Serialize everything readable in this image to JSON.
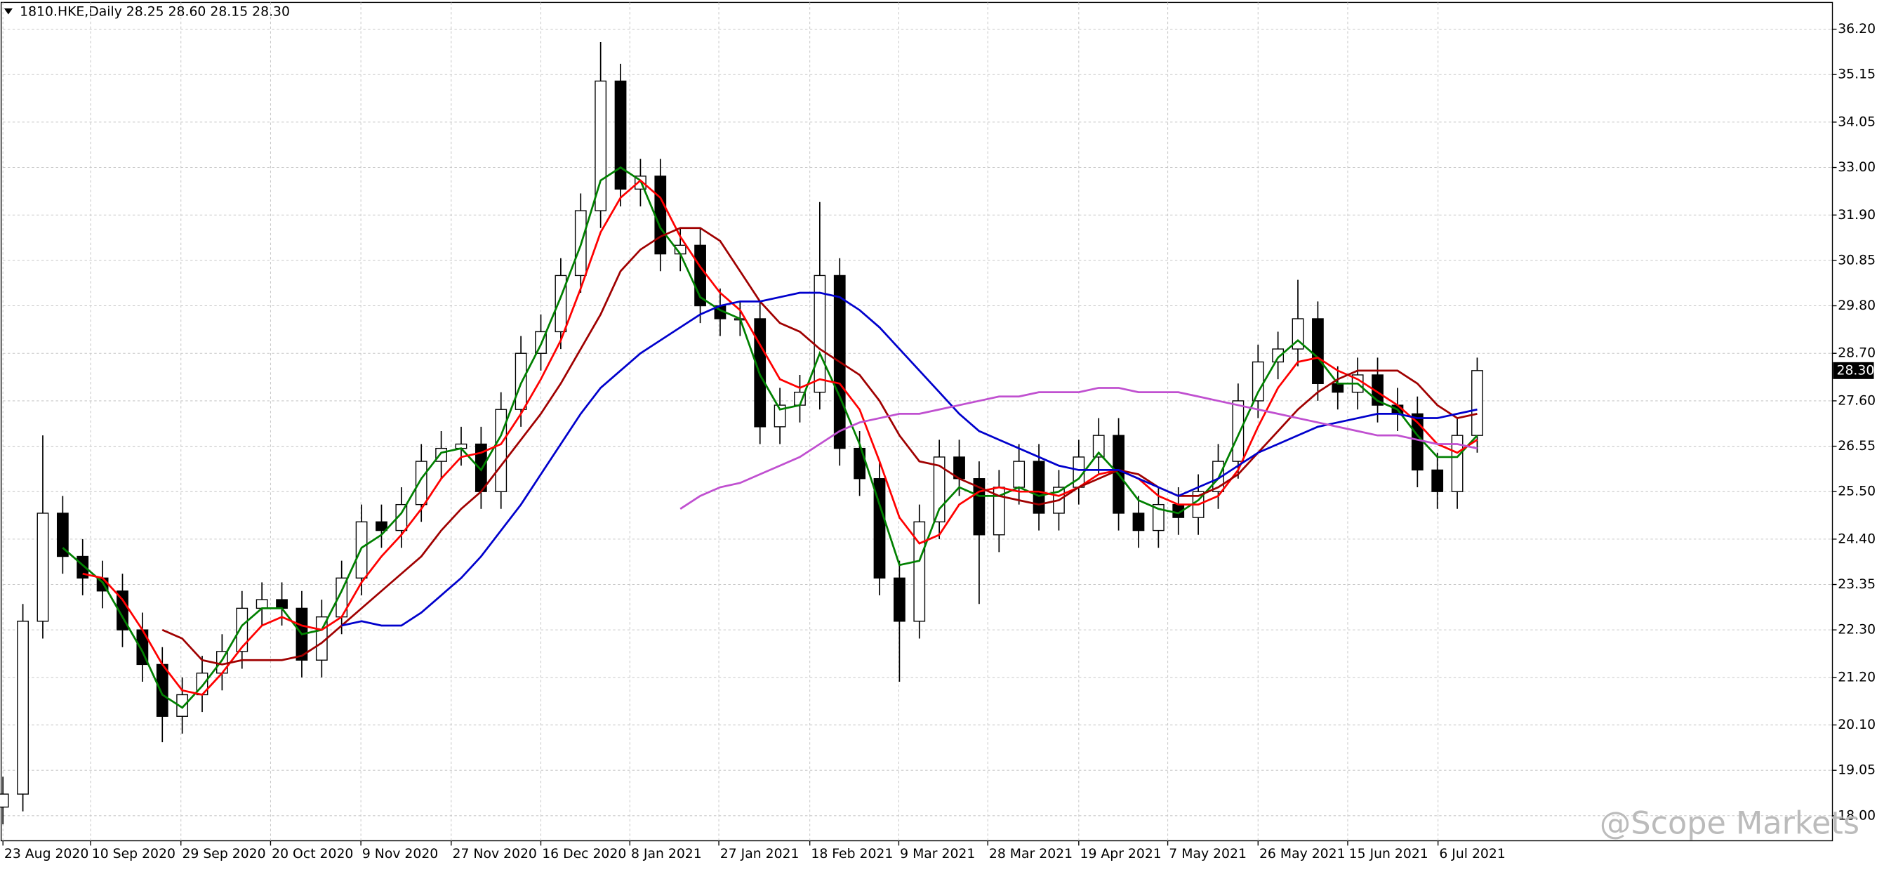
{
  "header": "1810.HKE,Daily  28.25 28.60 28.15 28.30",
  "watermark": "@Scope Markets",
  "chart_data": {
    "type": "candlestick",
    "x": [
      0,
      3,
      6,
      9,
      12,
      15,
      18,
      21,
      24,
      27,
      30,
      33,
      36,
      39,
      42,
      45,
      48,
      51,
      54,
      57,
      60,
      63,
      66,
      69,
      72,
      75,
      78,
      81,
      84,
      87,
      90,
      93,
      96,
      99,
      102,
      105,
      108,
      111,
      114,
      117,
      120,
      123,
      126,
      129,
      132,
      135,
      138,
      141,
      144,
      147,
      150,
      153,
      156,
      159,
      162,
      165,
      168,
      171,
      174,
      177,
      180,
      183,
      186,
      189,
      192,
      195,
      198,
      201,
      204,
      207,
      210,
      213,
      216,
      219,
      222
    ],
    "open": [
      18.2,
      18.5,
      22.5,
      25.0,
      24.0,
      23.5,
      23.2,
      22.3,
      21.5,
      20.3,
      20.8,
      21.3,
      21.8,
      22.8,
      23.0,
      22.8,
      21.6,
      22.6,
      23.5,
      24.8,
      24.6,
      25.2,
      26.2,
      26.5,
      26.6,
      25.5,
      27.4,
      28.7,
      29.2,
      30.5,
      32.0,
      35.0,
      32.5,
      32.8,
      31.0,
      31.2,
      29.8,
      29.5,
      29.5,
      27.0,
      27.5,
      27.8,
      30.5,
      26.5,
      25.8,
      23.5,
      22.5,
      24.8,
      26.3,
      25.8,
      24.5,
      25.6,
      26.2,
      25.0,
      25.6,
      26.3,
      26.8,
      25.0,
      24.6,
      25.2,
      24.9,
      25.5,
      26.2,
      27.6,
      28.5,
      28.8,
      29.5,
      28.0,
      27.8,
      28.2,
      27.5,
      27.3,
      26.0,
      25.5,
      26.8
    ],
    "high": [
      18.9,
      22.9,
      26.8,
      25.4,
      24.4,
      23.9,
      23.6,
      22.7,
      21.9,
      21.2,
      21.7,
      22.2,
      23.2,
      23.4,
      23.4,
      23.2,
      23.0,
      23.9,
      25.2,
      25.2,
      25.6,
      26.6,
      26.9,
      27.0,
      27.0,
      27.8,
      29.1,
      29.6,
      30.9,
      32.4,
      35.9,
      35.4,
      33.2,
      33.2,
      31.6,
      31.6,
      30.2,
      29.9,
      29.9,
      27.9,
      28.2,
      32.2,
      30.9,
      26.9,
      26.2,
      23.9,
      25.2,
      26.7,
      26.7,
      26.2,
      26.0,
      26.6,
      26.6,
      26.0,
      26.7,
      27.2,
      27.2,
      25.4,
      25.6,
      25.6,
      25.9,
      26.6,
      28.0,
      28.9,
      29.2,
      30.4,
      29.9,
      28.4,
      28.6,
      28.6,
      27.9,
      27.7,
      26.4,
      27.2,
      28.6
    ],
    "low": [
      17.8,
      18.1,
      22.1,
      23.6,
      23.1,
      22.8,
      21.9,
      21.1,
      19.7,
      19.9,
      20.4,
      20.9,
      21.4,
      22.4,
      22.4,
      21.2,
      21.2,
      22.2,
      23.1,
      24.2,
      24.2,
      24.8,
      25.8,
      26.1,
      25.1,
      25.1,
      27.0,
      28.3,
      28.8,
      30.1,
      31.6,
      32.1,
      32.1,
      30.6,
      30.6,
      29.4,
      29.1,
      29.1,
      26.6,
      26.6,
      27.1,
      27.4,
      26.1,
      25.4,
      23.1,
      21.1,
      22.1,
      24.4,
      25.4,
      22.9,
      24.1,
      25.2,
      24.6,
      24.6,
      25.2,
      25.9,
      24.6,
      24.2,
      24.2,
      24.5,
      24.5,
      25.1,
      25.8,
      27.2,
      28.1,
      28.4,
      27.6,
      27.4,
      27.4,
      27.1,
      26.9,
      25.6,
      25.1,
      25.1,
      26.4
    ],
    "close": [
      18.5,
      22.5,
      25.0,
      24.0,
      23.5,
      23.2,
      22.3,
      21.5,
      20.3,
      20.8,
      21.3,
      21.8,
      22.8,
      23.0,
      22.8,
      21.6,
      22.6,
      23.5,
      24.8,
      24.6,
      25.2,
      26.2,
      26.5,
      26.6,
      25.5,
      27.4,
      28.7,
      29.2,
      30.5,
      32.0,
      35.0,
      32.5,
      32.8,
      31.0,
      31.2,
      29.8,
      29.5,
      29.5,
      27.0,
      27.5,
      27.8,
      30.5,
      26.5,
      25.8,
      23.5,
      22.5,
      24.8,
      26.3,
      25.8,
      24.5,
      25.6,
      26.2,
      25.0,
      25.6,
      26.3,
      26.8,
      25.0,
      24.6,
      25.2,
      24.9,
      25.5,
      26.2,
      27.6,
      28.5,
      28.8,
      29.5,
      28.0,
      27.8,
      28.2,
      27.5,
      27.3,
      26.0,
      25.5,
      26.8,
      28.3
    ],
    "up_color": "#ffffff",
    "down_color": "#000000",
    "series": [
      {
        "color": "#008000",
        "values": [
          null,
          null,
          null,
          24.2,
          23.8,
          23.4,
          22.6,
          21.8,
          20.8,
          20.5,
          21.0,
          21.6,
          22.4,
          22.8,
          22.8,
          22.2,
          22.3,
          23.2,
          24.2,
          24.5,
          25.0,
          25.8,
          26.4,
          26.5,
          26.0,
          26.8,
          28.0,
          28.9,
          30.0,
          31.2,
          32.7,
          33.0,
          32.7,
          31.6,
          31.0,
          30.0,
          29.7,
          29.5,
          28.2,
          27.4,
          27.5,
          28.7,
          27.7,
          26.6,
          25.2,
          23.8,
          23.9,
          25.1,
          25.6,
          25.4,
          25.4,
          25.6,
          25.4,
          25.5,
          25.8,
          26.4,
          25.9,
          25.3,
          25.1,
          25.0,
          25.3,
          25.8,
          26.8,
          27.8,
          28.6,
          29.0,
          28.6,
          28.0,
          28.0,
          27.6,
          27.4,
          26.8,
          26.3,
          26.3,
          26.8
        ]
      },
      {
        "color": "#ff0000",
        "values": [
          null,
          null,
          null,
          null,
          23.6,
          23.5,
          23.0,
          22.3,
          21.5,
          20.9,
          20.8,
          21.3,
          21.9,
          22.4,
          22.6,
          22.4,
          22.3,
          22.6,
          23.4,
          24.0,
          24.5,
          25.1,
          25.8,
          26.3,
          26.4,
          26.6,
          27.3,
          28.1,
          29.0,
          30.2,
          31.5,
          32.3,
          32.7,
          32.3,
          31.4,
          30.7,
          30.1,
          29.7,
          28.9,
          28.1,
          27.9,
          28.1,
          28.0,
          27.4,
          26.2,
          24.9,
          24.3,
          24.5,
          25.2,
          25.5,
          25.6,
          25.5,
          25.5,
          25.4,
          25.6,
          25.9,
          26.0,
          25.8,
          25.4,
          25.2,
          25.2,
          25.4,
          26.0,
          27.0,
          27.9,
          28.5,
          28.6,
          28.3,
          28.1,
          27.8,
          27.5,
          27.1,
          26.6,
          26.4,
          26.7
        ]
      },
      {
        "color": "#a00000",
        "values": [
          null,
          null,
          null,
          null,
          null,
          null,
          null,
          null,
          22.3,
          22.1,
          21.6,
          21.5,
          21.6,
          21.6,
          21.6,
          21.7,
          22.0,
          22.4,
          22.8,
          23.2,
          23.6,
          24.0,
          24.6,
          25.1,
          25.5,
          26.1,
          26.7,
          27.3,
          28.0,
          28.8,
          29.6,
          30.6,
          31.1,
          31.4,
          31.6,
          31.6,
          31.3,
          30.6,
          29.9,
          29.4,
          29.2,
          28.8,
          28.5,
          28.2,
          27.6,
          26.8,
          26.2,
          26.1,
          25.8,
          25.6,
          25.4,
          25.3,
          25.2,
          25.3,
          25.6,
          25.8,
          26.0,
          25.9,
          25.6,
          25.4,
          25.4,
          25.6,
          25.9,
          26.4,
          26.9,
          27.4,
          27.8,
          28.1,
          28.3,
          28.3,
          28.3,
          28.0,
          27.5,
          27.2,
          27.3
        ]
      },
      {
        "color": "#0000cc",
        "values": [
          null,
          null,
          null,
          null,
          null,
          null,
          null,
          null,
          null,
          null,
          null,
          null,
          null,
          null,
          null,
          null,
          null,
          22.4,
          22.5,
          22.4,
          22.4,
          22.7,
          23.1,
          23.5,
          24.0,
          24.6,
          25.2,
          25.9,
          26.6,
          27.3,
          27.9,
          28.3,
          28.7,
          29.0,
          29.3,
          29.6,
          29.8,
          29.9,
          29.9,
          30.0,
          30.1,
          30.1,
          30.0,
          29.7,
          29.3,
          28.8,
          28.3,
          27.8,
          27.3,
          26.9,
          26.7,
          26.5,
          26.3,
          26.1,
          26.0,
          26.0,
          26.0,
          25.8,
          25.6,
          25.4,
          25.6,
          25.8,
          26.1,
          26.4,
          26.6,
          26.8,
          27.0,
          27.1,
          27.2,
          27.3,
          27.3,
          27.2,
          27.2,
          27.3,
          27.4
        ]
      },
      {
        "color": "#c050d0",
        "values": [
          null,
          null,
          null,
          null,
          null,
          null,
          null,
          null,
          null,
          null,
          null,
          null,
          null,
          null,
          null,
          null,
          null,
          null,
          null,
          null,
          null,
          null,
          null,
          null,
          null,
          null,
          null,
          null,
          null,
          null,
          null,
          null,
          null,
          null,
          25.1,
          25.4,
          25.6,
          25.7,
          25.9,
          26.1,
          26.3,
          26.6,
          26.9,
          27.1,
          27.2,
          27.3,
          27.3,
          27.4,
          27.5,
          27.6,
          27.7,
          27.7,
          27.8,
          27.8,
          27.8,
          27.9,
          27.9,
          27.8,
          27.8,
          27.8,
          27.7,
          27.6,
          27.5,
          27.4,
          27.3,
          27.2,
          27.1,
          27.0,
          26.9,
          26.8,
          26.8,
          26.7,
          26.6,
          26.6,
          26.5
        ]
      }
    ],
    "last_price": {
      "value": 28.3,
      "label": "28.30"
    },
    "xlim": [
      0,
      275.4
    ],
    "ylim": [
      17.42,
      36.82
    ],
    "xticks": [
      {
        "value": 0,
        "label": "23 Aug 2020"
      },
      {
        "value": 13.2,
        "label": "10 Sep 2020"
      },
      {
        "value": 26.8,
        "label": "29 Sep 2020"
      },
      {
        "value": 40.3,
        "label": "20 Oct 2020"
      },
      {
        "value": 53.9,
        "label": "9 Nov 2020"
      },
      {
        "value": 67.5,
        "label": "27 Nov 2020"
      },
      {
        "value": 81,
        "label": "16 Dec 2020"
      },
      {
        "value": 94.4,
        "label": "8 Jan 2021"
      },
      {
        "value": 107.8,
        "label": "27 Jan 2021"
      },
      {
        "value": 121.5,
        "label": "18 Feb 2021"
      },
      {
        "value": 134.9,
        "label": "9 Mar 2021"
      },
      {
        "value": 148.3,
        "label": "28 Mar 2021"
      },
      {
        "value": 162,
        "label": "19 Apr 2021"
      },
      {
        "value": 175.4,
        "label": "7 May 2021"
      },
      {
        "value": 189,
        "label": "26 May 2021"
      },
      {
        "value": 202.5,
        "label": "15 Jun 2021"
      },
      {
        "value": 216.1,
        "label": "6 Jul 2021"
      }
    ],
    "yticks": [
      {
        "value": 36.2,
        "label": "36.20"
      },
      35.15,
      34.05,
      {
        "value": 33,
        "label": "33.00"
      },
      {
        "value": 31.9,
        "label": "31.90"
      },
      30.85,
      {
        "value": 29.8,
        "label": "29.80"
      },
      {
        "value": 28.7,
        "label": "28.70"
      },
      {
        "value": 27.6,
        "label": "27.60"
      },
      26.55,
      {
        "value": 25.5,
        "label": "25.50"
      },
      {
        "value": 24.4,
        "label": "24.40"
      },
      23.35,
      {
        "value": 22.3,
        "label": "22.30"
      },
      {
        "value": 21.2,
        "label": "21.20"
      },
      {
        "value": 20.1,
        "label": "20.10"
      },
      19.05,
      {
        "value": 18,
        "label": "18.00"
      }
    ],
    "grid": true
  }
}
